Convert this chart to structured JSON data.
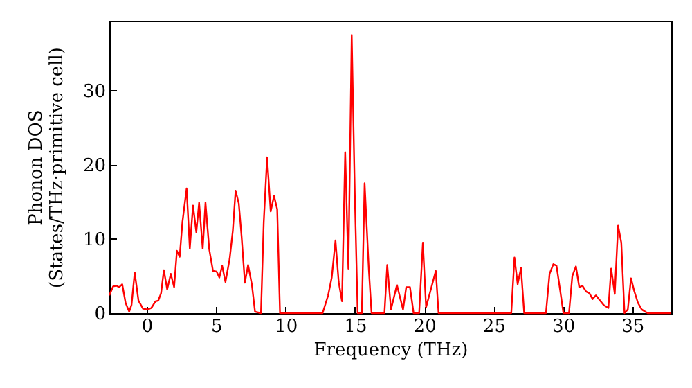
{
  "chart_data": {
    "type": "line",
    "xlabel": "Frequency (THz)",
    "ylabel": "Phonon DOS\n(States/THz·primitive cell)",
    "xlim": [
      -2.7,
      37.8
    ],
    "ylim": [
      0,
      39.4
    ],
    "xticks": [
      0,
      5,
      10,
      15,
      20,
      25,
      30,
      35
    ],
    "yticks": [
      0,
      10,
      20,
      30
    ],
    "grid": false,
    "marker": "none",
    "line_style": "solid",
    "series": [
      {
        "color": "#ff0000",
        "x": [
          -2.7,
          -2.43,
          -2.17,
          -2.0,
          -1.77,
          -1.53,
          -1.27,
          -1.1,
          -0.87,
          -0.6,
          -0.27,
          0.07,
          0.33,
          0.63,
          0.83,
          1.03,
          1.23,
          1.47,
          1.73,
          1.97,
          2.17,
          2.37,
          2.57,
          2.87,
          3.1,
          3.33,
          3.57,
          3.77,
          4.03,
          4.23,
          4.5,
          4.77,
          5.03,
          5.23,
          5.43,
          5.67,
          5.97,
          6.2,
          6.4,
          6.63,
          6.83,
          7.07,
          7.3,
          7.57,
          7.8,
          8.23,
          8.43,
          8.67,
          8.93,
          9.17,
          9.4,
          9.6,
          12.67,
          13.07,
          13.33,
          13.6,
          13.83,
          14.07,
          14.3,
          14.53,
          14.77,
          15.0,
          15.2,
          15.5,
          15.7,
          16.0,
          16.2,
          17.13,
          17.33,
          17.6,
          18.03,
          18.47,
          18.7,
          18.97,
          19.23,
          19.63,
          19.9,
          20.13,
          20.83,
          21.03,
          26.27,
          26.5,
          26.73,
          26.97,
          27.2,
          28.77,
          29.03,
          29.3,
          29.53,
          29.8,
          30.03,
          30.43,
          30.67,
          30.93,
          31.17,
          31.4,
          31.67,
          31.9,
          32.13,
          32.37,
          32.67,
          32.93,
          33.27,
          33.47,
          33.73,
          33.97,
          34.2,
          34.43,
          34.67,
          34.9,
          35.13,
          35.4,
          35.67,
          36.1,
          37.8
        ],
        "values": [
          2.4,
          3.6,
          3.7,
          3.5,
          3.9,
          1.4,
          0.2,
          1.1,
          5.5,
          1.7,
          0.6,
          0.5,
          0.7,
          1.6,
          1.7,
          2.7,
          5.8,
          3.2,
          5.3,
          3.5,
          8.4,
          7.6,
          12.3,
          16.8,
          8.7,
          14.5,
          10.9,
          14.9,
          8.7,
          14.9,
          8.6,
          5.7,
          5.6,
          4.8,
          6.4,
          4.2,
          7.3,
          11.1,
          16.5,
          14.8,
          10.4,
          4.1,
          6.5,
          3.9,
          0.2,
          0,
          12.3,
          21,
          13.7,
          15.8,
          14,
          0,
          0,
          2.4,
          4.8,
          9.8,
          4.2,
          1.6,
          21.7,
          6.0,
          37.5,
          15.4,
          0,
          0,
          17.5,
          6,
          0,
          0,
          6.5,
          0.5,
          3.8,
          0.5,
          3.5,
          3.5,
          0,
          0,
          9.5,
          0.8,
          5.7,
          0,
          0,
          7.5,
          3.9,
          6.1,
          0,
          0,
          5.3,
          6.6,
          6.4,
          3.0,
          0,
          0,
          5.0,
          6.3,
          3.5,
          3.7,
          2.9,
          2.7,
          1.9,
          2.4,
          1.7,
          1.1,
          0.7,
          6.0,
          2.6,
          11.8,
          9.5,
          0,
          0.5,
          4.7,
          3.0,
          1.4,
          0.5,
          0,
          0
        ]
      }
    ]
  }
}
